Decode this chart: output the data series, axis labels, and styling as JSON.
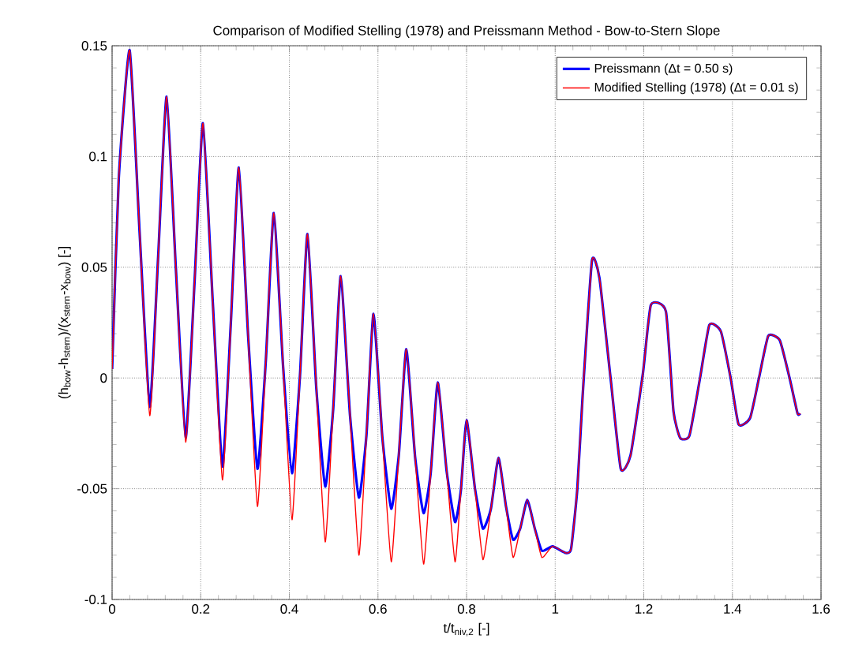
{
  "chart_data": {
    "type": "line",
    "title": "Comparison of Modified Stelling (1978) and Preissmann Method - Bow-to-Stern Slope",
    "xlabel": "t/t$_{niv,2}$ [-]",
    "ylabel": "(h$_{bow}$-h$_{stern}$)/(x$_{stern}$-x$_{bow}$) [-]",
    "x": [
      0,
      0.015,
      0.0396,
      0.062,
      0.085,
      0.104,
      0.123,
      0.144,
      0.166,
      0.186,
      0.205,
      0.227,
      0.249,
      0.268,
      0.286,
      0.307,
      0.328,
      0.347,
      0.365,
      0.386,
      0.406,
      0.424,
      0.441,
      0.461,
      0.481,
      0.499,
      0.516,
      0.537,
      0.557,
      0.574,
      0.59,
      0.61,
      0.63,
      0.647,
      0.664,
      0.684,
      0.703,
      0.719,
      0.735,
      0.755,
      0.774,
      0.787,
      0.8,
      0.819,
      0.837,
      0.855,
      0.872,
      0.889,
      0.905,
      0.921,
      0.937,
      0.954,
      0.97,
      0.994,
      1.024,
      1.036,
      1.05,
      1.062,
      1.083,
      1.1,
      1.125,
      1.148,
      1.17,
      1.198,
      1.216,
      1.25,
      1.267,
      1.282,
      1.303,
      1.327,
      1.348,
      1.374,
      1.396,
      1.414,
      1.44,
      1.46,
      1.481,
      1.507,
      1.529,
      1.547,
      1.553
    ],
    "series": [
      {
        "name": "Preissmann (Δt = 0.50 s)",
        "color": "#0000ff",
        "values": [
          0.004,
          0.09,
          0.148,
          0.066,
          -0.013,
          0.055,
          0.127,
          0.049,
          -0.027,
          0.043,
          0.115,
          0.035,
          -0.04,
          0.025,
          0.095,
          0.019,
          -0.041,
          0.008,
          0.0745,
          0.005,
          -0.043,
          0.001,
          0.065,
          -0.005,
          -0.049,
          -0.014,
          0.046,
          -0.017,
          -0.054,
          -0.026,
          0.029,
          -0.027,
          -0.059,
          -0.035,
          0.013,
          -0.036,
          -0.061,
          -0.043,
          -0.002,
          -0.042,
          -0.065,
          -0.051,
          -0.019,
          -0.05,
          -0.068,
          -0.059,
          -0.036,
          -0.058,
          -0.073,
          -0.068,
          -0.055,
          -0.068,
          -0.078,
          -0.076,
          -0.079,
          -0.077,
          -0.05,
          -0.008,
          0.053,
          0.045,
          0.0,
          -0.041,
          -0.035,
          0.002,
          0.033,
          0.03,
          -0.015,
          -0.027,
          -0.026,
          0.0,
          0.024,
          0.021,
          0.0,
          -0.021,
          -0.018,
          0.0,
          0.019,
          0.017,
          0.0,
          -0.016,
          -0.016
        ]
      },
      {
        "name": "Modified Stelling (1978) (Δt = 0.01 s)",
        "color": "#ff0000",
        "values": [
          0.004,
          0.09,
          0.148,
          0.066,
          -0.017,
          0.055,
          0.127,
          0.049,
          -0.029,
          0.043,
          0.115,
          0.035,
          -0.046,
          0.025,
          0.095,
          0.019,
          -0.058,
          0.008,
          0.0745,
          0.005,
          -0.064,
          0.001,
          0.065,
          -0.005,
          -0.074,
          -0.014,
          0.046,
          -0.017,
          -0.08,
          -0.026,
          0.029,
          -0.027,
          -0.083,
          -0.035,
          0.013,
          -0.036,
          -0.084,
          -0.043,
          -0.002,
          -0.042,
          -0.083,
          -0.051,
          -0.019,
          -0.05,
          -0.082,
          -0.059,
          -0.036,
          -0.058,
          -0.081,
          -0.068,
          -0.055,
          -0.068,
          -0.081,
          -0.076,
          -0.079,
          -0.077,
          -0.05,
          -0.008,
          0.053,
          0.045,
          0.0,
          -0.041,
          -0.035,
          0.002,
          0.033,
          0.03,
          -0.015,
          -0.027,
          -0.026,
          0.0,
          0.024,
          0.021,
          0.0,
          -0.021,
          -0.018,
          0.0,
          0.019,
          0.017,
          0.0,
          -0.016,
          -0.016
        ]
      }
    ],
    "xlim": [
      0,
      1.6
    ],
    "ylim": [
      -0.1,
      0.15
    ],
    "xticks": [
      0,
      0.2,
      0.4,
      0.6,
      0.8,
      1,
      1.2,
      1.4,
      1.6
    ],
    "yticks": [
      -0.1,
      -0.05,
      0,
      0.05,
      0.1,
      0.15
    ],
    "grid": true,
    "legend": "top right",
    "marker": "none",
    "line_style": "solid"
  }
}
